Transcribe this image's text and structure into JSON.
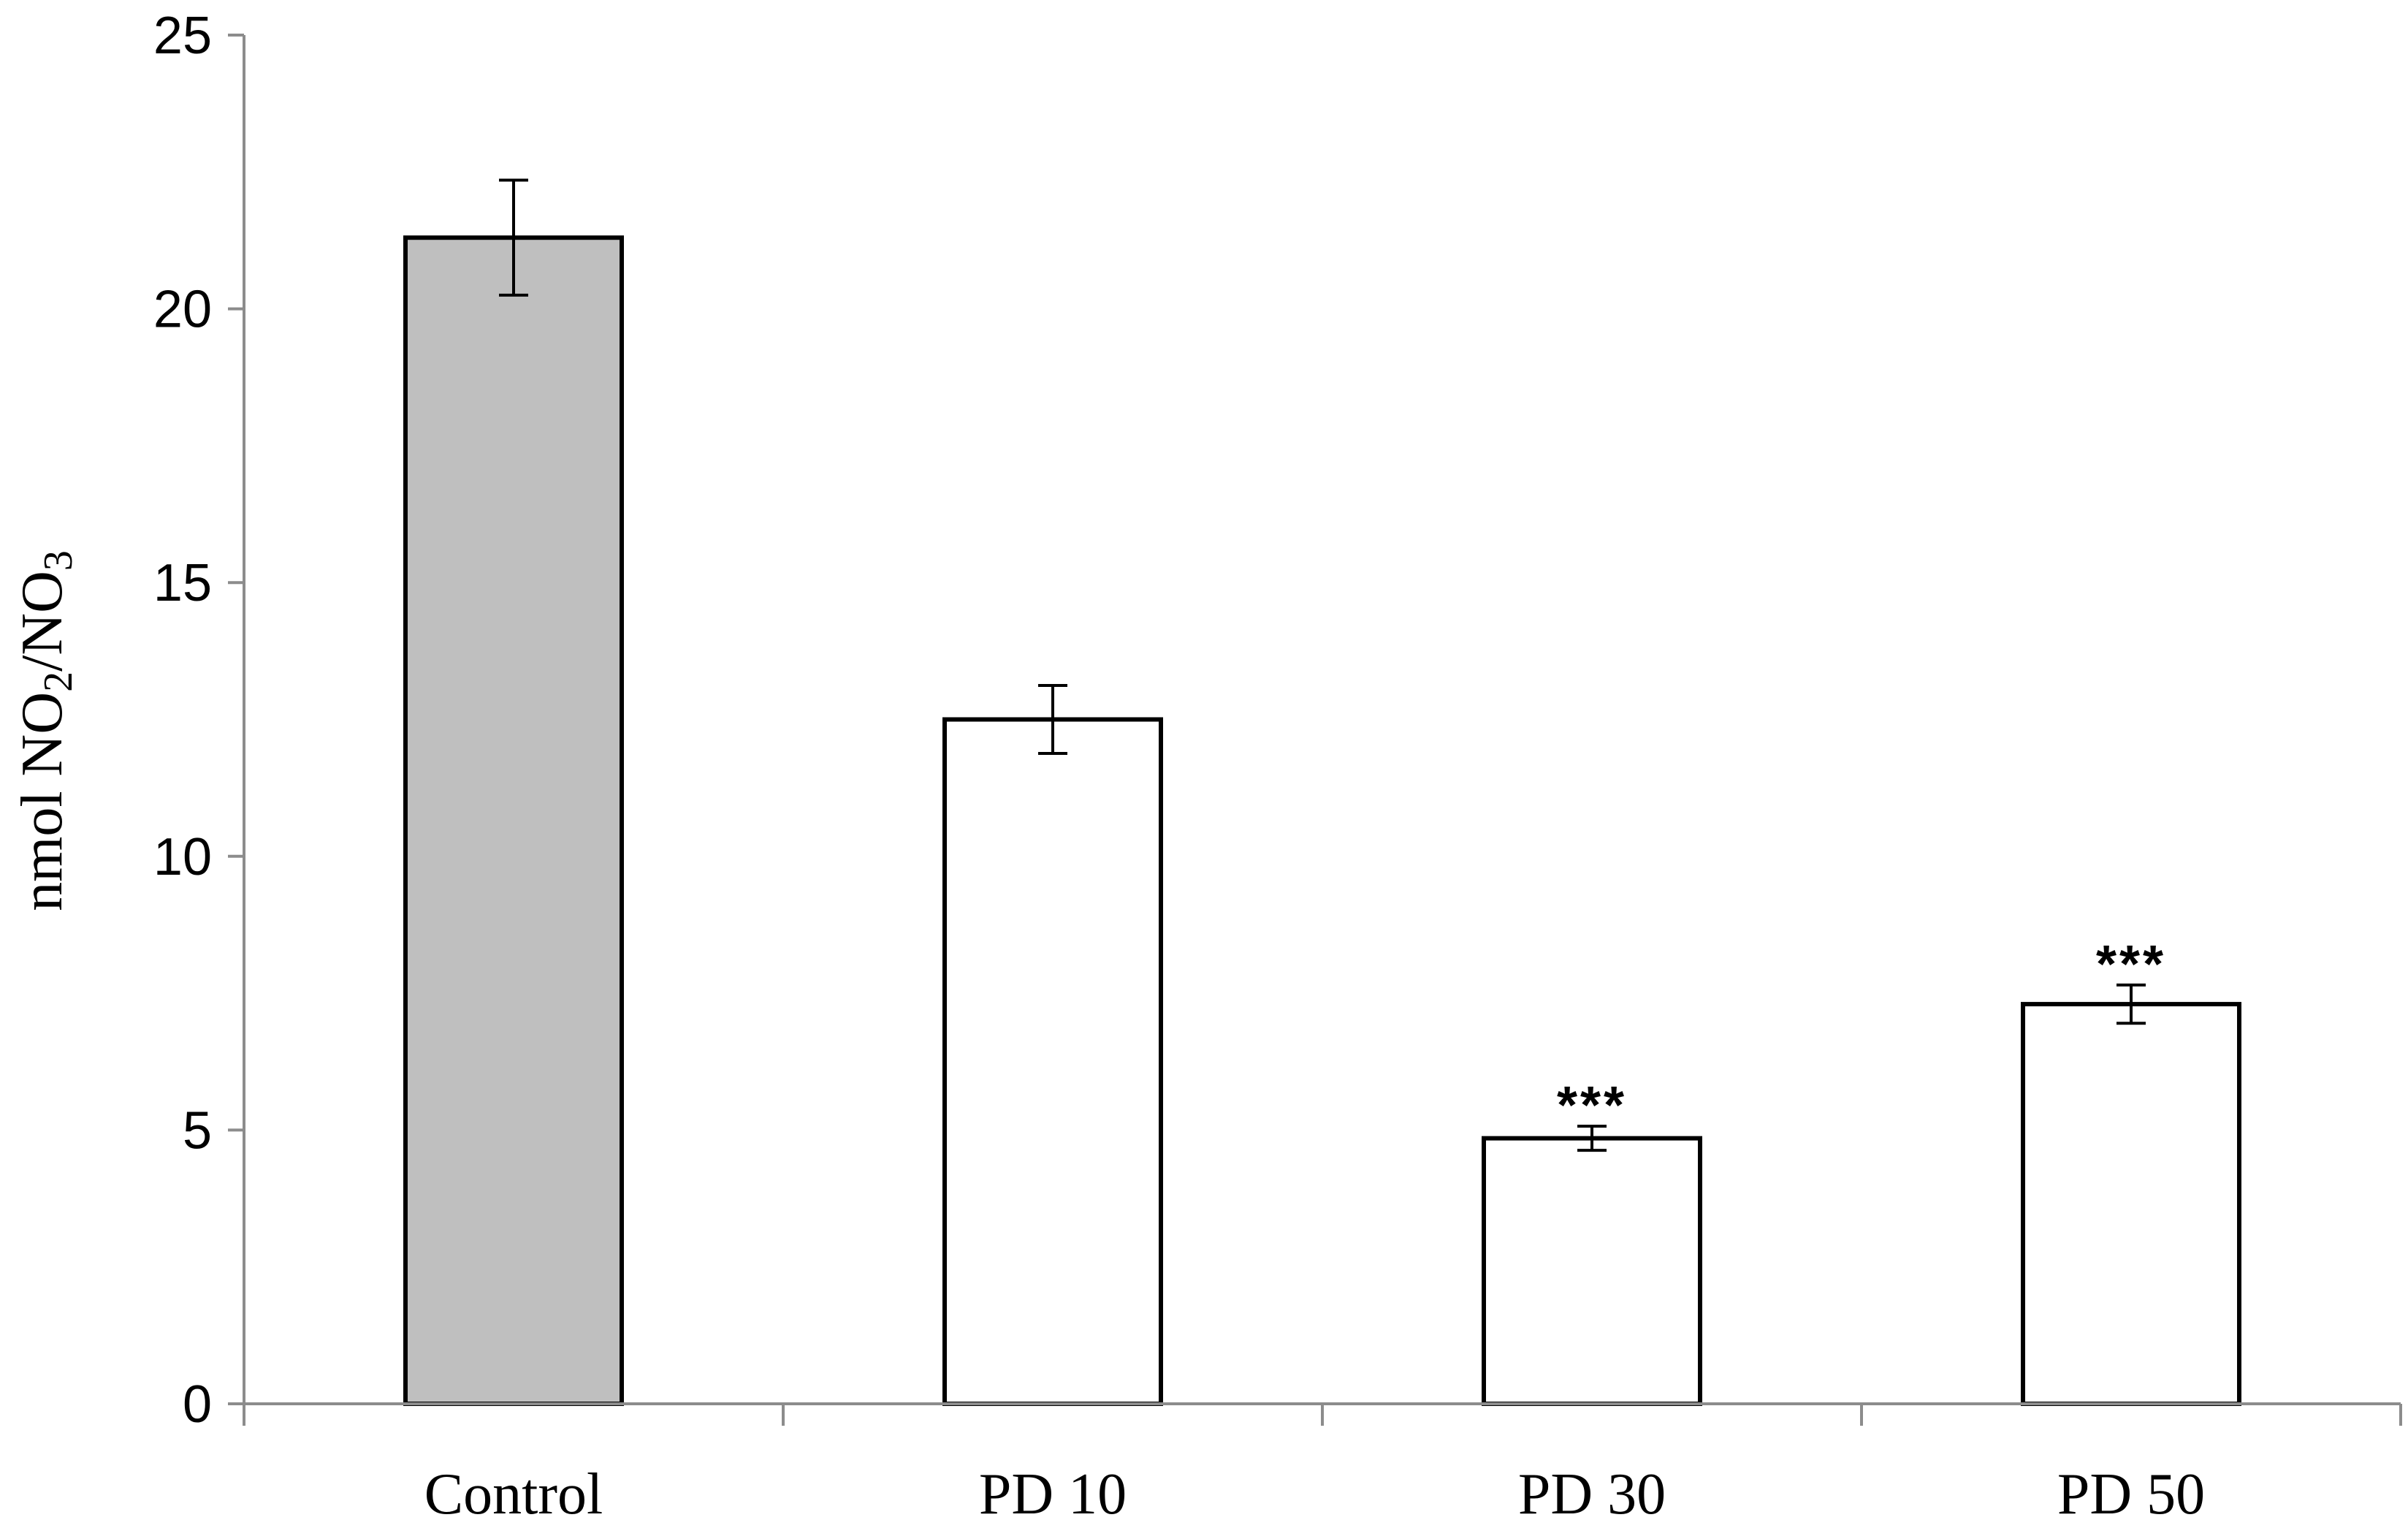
{
  "chart_data": {
    "type": "bar",
    "title": "",
    "categories": [
      "Control",
      "PD 10",
      "PD 30",
      "PD 50"
    ],
    "values": [
      21.3,
      12.5,
      4.85,
      7.3
    ],
    "errors": [
      1.05,
      0.62,
      0.22,
      0.35
    ],
    "significance": [
      "",
      "",
      "***",
      "***"
    ],
    "bar_colors": [
      "#bfbfbf",
      "#ffffff",
      "#ffffff",
      "#ffffff"
    ],
    "ylim": [
      0,
      25
    ],
    "yticks": [
      0,
      5,
      10,
      15,
      20,
      25
    ],
    "ylabel": {
      "prefix": "nmol NO",
      "sub1": "2",
      "mid": "/NO",
      "sub2": "3"
    },
    "xlabel": "",
    "grid": false,
    "legend": "none"
  }
}
